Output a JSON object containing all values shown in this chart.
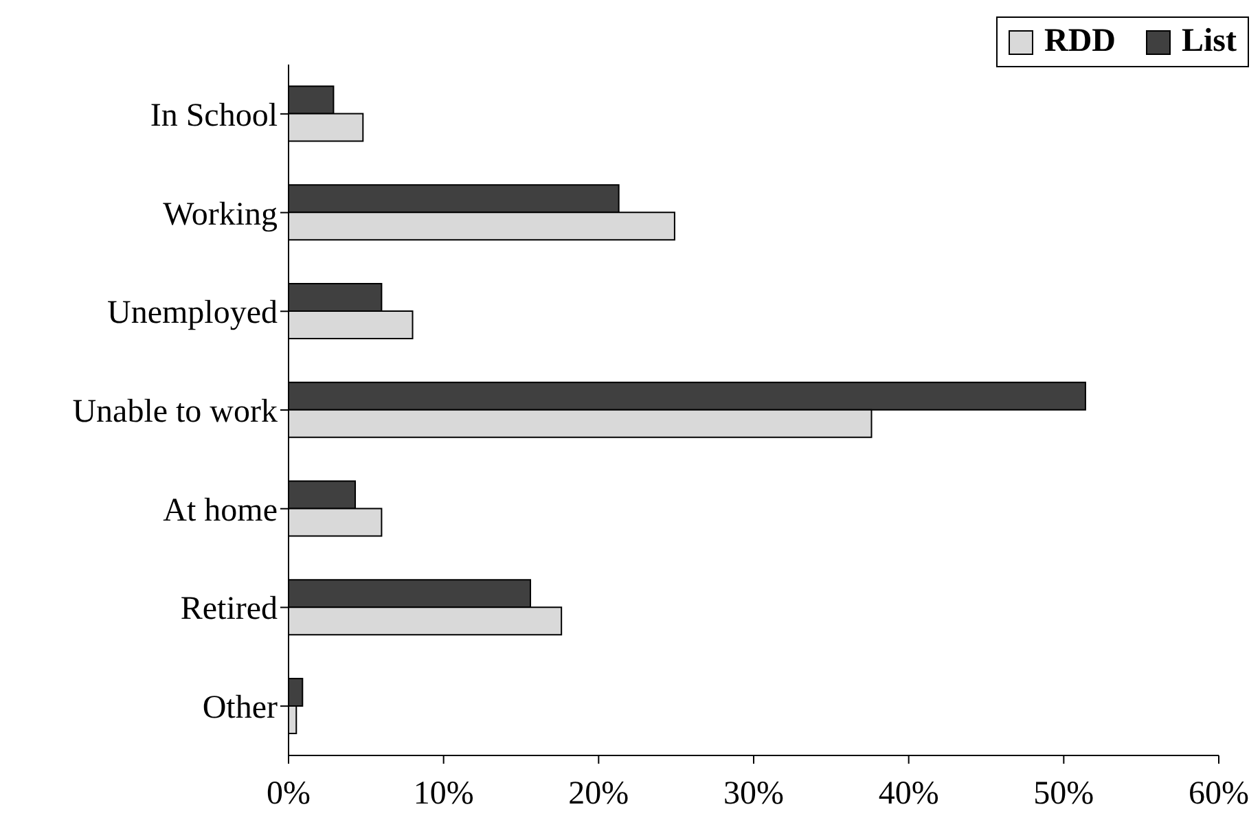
{
  "chart_data": {
    "type": "bar",
    "orientation": "horizontal",
    "categories": [
      "In School",
      "Working",
      "Unemployed",
      "Unable to work",
      "At home",
      "Retired",
      "Other"
    ],
    "series": [
      {
        "name": "RDD",
        "color": "#d9d9d9",
        "values": [
          4.8,
          24.9,
          8.0,
          37.6,
          6.0,
          17.6,
          0.5
        ]
      },
      {
        "name": "List",
        "color": "#404040",
        "values": [
          2.9,
          21.3,
          6.0,
          51.4,
          4.3,
          15.6,
          0.9
        ]
      }
    ],
    "xlim": [
      0,
      60
    ],
    "xticks": [
      {
        "value": 0,
        "label": "0%"
      },
      {
        "value": 10,
        "label": "10%"
      },
      {
        "value": 20,
        "label": "20%"
      },
      {
        "value": 30,
        "label": "30%"
      },
      {
        "value": 40,
        "label": "40%"
      },
      {
        "value": 50,
        "label": "50%"
      },
      {
        "value": 60,
        "label": "60%"
      }
    ],
    "grid": false,
    "legend": "top right"
  }
}
